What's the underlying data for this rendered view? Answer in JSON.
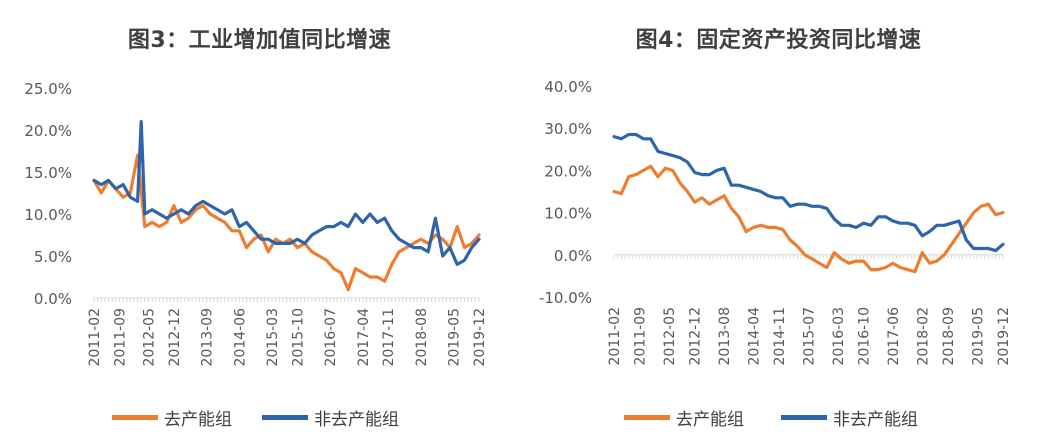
{
  "chart_data": [
    {
      "type": "line",
      "title": "图3：工业增加值同比增速",
      "ylim": [
        0,
        25
      ],
      "y_ticks": [
        "0.0%",
        "5.0%",
        "10.0%",
        "15.0%",
        "20.0%",
        "25.0%"
      ],
      "x_tick_labels": [
        "2011-02",
        "2011-09",
        "2012-05",
        "2012-12",
        "2013-09",
        "2014-06",
        "2015-03",
        "2015-10",
        "2016-07",
        "2017-04",
        "2017-11",
        "2018-08",
        "2019-05",
        "2019-12"
      ],
      "legend_position": "bottom",
      "series": [
        {
          "name": "去产能组",
          "color": "#ED7D31",
          "x": [
            "2011-02",
            "2011-04",
            "2011-06",
            "2011-08",
            "2011-10",
            "2011-12",
            "2012-02",
            "2012-04",
            "2012-06",
            "2012-08",
            "2012-10",
            "2012-12",
            "2013-02",
            "2013-04",
            "2013-06",
            "2013-08",
            "2013-10",
            "2013-12",
            "2014-02",
            "2014-04",
            "2014-06",
            "2014-08",
            "2014-10",
            "2014-12",
            "2015-02",
            "2015-04",
            "2015-06",
            "2015-08",
            "2015-10",
            "2015-12",
            "2016-02",
            "2016-04",
            "2016-06",
            "2016-08",
            "2016-10",
            "2016-12",
            "2017-02",
            "2017-04",
            "2017-06",
            "2017-08",
            "2017-10",
            "2017-12",
            "2018-02",
            "2018-04",
            "2018-06",
            "2018-08",
            "2018-10",
            "2018-12",
            "2019-02",
            "2019-04",
            "2019-06",
            "2019-08",
            "2019-10",
            "2019-12"
          ],
          "values": [
            14.0,
            12.5,
            14.0,
            13.0,
            12.0,
            12.5,
            17.0,
            8.5,
            9.0,
            8.5,
            9.0,
            11.0,
            9.0,
            9.5,
            10.5,
            11.0,
            10.0,
            9.5,
            9.0,
            8.0,
            8.0,
            6.0,
            7.0,
            7.5,
            5.5,
            7.0,
            6.5,
            7.0,
            6.0,
            6.5,
            5.5,
            5.0,
            4.5,
            3.5,
            3.0,
            1.0,
            3.5,
            3.0,
            2.5,
            2.5,
            2.0,
            4.0,
            5.5,
            6.0,
            6.5,
            7.0,
            6.5,
            7.5,
            7.0,
            6.0,
            8.5,
            6.0,
            6.5,
            7.5
          ]
        },
        {
          "name": "非去产能组",
          "color": "#2E65AA",
          "x": [
            "2011-02",
            "2011-04",
            "2011-06",
            "2011-08",
            "2011-10",
            "2011-12",
            "2012-02",
            "2012-03",
            "2012-04",
            "2012-06",
            "2012-08",
            "2012-10",
            "2012-12",
            "2013-02",
            "2013-04",
            "2013-06",
            "2013-08",
            "2013-10",
            "2013-12",
            "2014-02",
            "2014-04",
            "2014-06",
            "2014-08",
            "2014-10",
            "2014-12",
            "2015-02",
            "2015-04",
            "2015-06",
            "2015-08",
            "2015-10",
            "2015-12",
            "2016-02",
            "2016-04",
            "2016-06",
            "2016-08",
            "2016-10",
            "2016-12",
            "2017-02",
            "2017-04",
            "2017-06",
            "2017-08",
            "2017-10",
            "2017-12",
            "2018-02",
            "2018-04",
            "2018-06",
            "2018-08",
            "2018-10",
            "2018-12",
            "2019-02",
            "2019-04",
            "2019-06",
            "2019-08",
            "2019-10",
            "2019-12"
          ],
          "values": [
            14.0,
            13.5,
            14.0,
            13.0,
            13.5,
            12.0,
            11.5,
            21.0,
            10.0,
            10.5,
            10.0,
            9.5,
            10.0,
            10.5,
            10.0,
            11.0,
            11.5,
            11.0,
            10.5,
            10.0,
            10.5,
            8.5,
            9.0,
            8.0,
            7.0,
            7.0,
            6.5,
            6.5,
            6.5,
            7.0,
            6.5,
            7.5,
            8.0,
            8.5,
            8.5,
            9.0,
            8.5,
            10.0,
            9.0,
            10.0,
            9.0,
            9.5,
            8.0,
            7.0,
            6.5,
            6.0,
            6.0,
            5.5,
            9.5,
            5.0,
            6.0,
            4.0,
            4.5,
            6.0,
            7.0
          ]
        }
      ]
    },
    {
      "type": "line",
      "title": "图4：固定资产投资同比增速",
      "ylim": [
        -10,
        40
      ],
      "y_ticks": [
        "-10.0%",
        "0.0%",
        "10.0%",
        "20.0%",
        "30.0%",
        "40.0%"
      ],
      "x_tick_labels": [
        "2011-02",
        "2011-09",
        "2012-05",
        "2012-12",
        "2013-08",
        "2014-04",
        "2014-11",
        "2015-07",
        "2016-03",
        "2016-10",
        "2017-06",
        "2018-02",
        "2018-09",
        "2019-05",
        "2019-12"
      ],
      "legend_position": "bottom",
      "series": [
        {
          "name": "去产能组",
          "color": "#ED7D31",
          "x": [
            "2011-02",
            "2011-04",
            "2011-06",
            "2011-08",
            "2011-10",
            "2011-12",
            "2012-02",
            "2012-04",
            "2012-06",
            "2012-08",
            "2012-10",
            "2012-12",
            "2013-02",
            "2013-04",
            "2013-06",
            "2013-08",
            "2013-10",
            "2013-12",
            "2014-02",
            "2014-04",
            "2014-06",
            "2014-08",
            "2014-10",
            "2014-12",
            "2015-02",
            "2015-04",
            "2015-06",
            "2015-08",
            "2015-10",
            "2015-12",
            "2016-02",
            "2016-04",
            "2016-06",
            "2016-08",
            "2016-10",
            "2016-12",
            "2017-02",
            "2017-04",
            "2017-06",
            "2017-08",
            "2017-10",
            "2017-12",
            "2018-02",
            "2018-04",
            "2018-06",
            "2018-08",
            "2018-10",
            "2018-12",
            "2019-02",
            "2019-04",
            "2019-06",
            "2019-08",
            "2019-10",
            "2019-12"
          ],
          "values": [
            15.0,
            14.5,
            18.5,
            19.0,
            20.0,
            21.0,
            18.5,
            20.5,
            20.0,
            17.0,
            15.0,
            12.5,
            13.5,
            12.0,
            13.0,
            14.0,
            11.0,
            9.0,
            5.5,
            6.5,
            7.0,
            6.5,
            6.5,
            6.0,
            3.5,
            2.0,
            0.0,
            -1.0,
            -2.0,
            -3.0,
            0.5,
            -1.0,
            -2.0,
            -1.5,
            -1.5,
            -3.5,
            -3.5,
            -3.0,
            -2.0,
            -3.0,
            -3.5,
            -4.0,
            0.5,
            -2.0,
            -1.5,
            0.0,
            2.5,
            5.0,
            7.5,
            10.0,
            11.5,
            12.0,
            9.5,
            10.0
          ]
        },
        {
          "name": "非去产能组",
          "color": "#2E65AA",
          "x": [
            "2011-02",
            "2011-04",
            "2011-06",
            "2011-08",
            "2011-10",
            "2011-12",
            "2012-02",
            "2012-04",
            "2012-06",
            "2012-08",
            "2012-10",
            "2012-12",
            "2013-02",
            "2013-04",
            "2013-06",
            "2013-08",
            "2013-10",
            "2013-12",
            "2014-02",
            "2014-04",
            "2014-06",
            "2014-08",
            "2014-10",
            "2014-12",
            "2015-02",
            "2015-04",
            "2015-06",
            "2015-08",
            "2015-10",
            "2015-12",
            "2016-02",
            "2016-04",
            "2016-06",
            "2016-08",
            "2016-10",
            "2016-12",
            "2017-02",
            "2017-04",
            "2017-06",
            "2017-08",
            "2017-10",
            "2017-12",
            "2018-02",
            "2018-04",
            "2018-06",
            "2018-08",
            "2018-10",
            "2018-12",
            "2019-02",
            "2019-04",
            "2019-06",
            "2019-08",
            "2019-10",
            "2019-12"
          ],
          "values": [
            28.0,
            27.5,
            28.5,
            28.5,
            27.5,
            27.5,
            24.5,
            24.0,
            23.5,
            23.0,
            22.0,
            19.5,
            19.0,
            19.0,
            20.0,
            20.5,
            16.5,
            16.5,
            16.0,
            15.5,
            15.0,
            14.0,
            13.5,
            13.5,
            11.5,
            12.0,
            12.0,
            11.5,
            11.5,
            11.0,
            8.5,
            7.0,
            7.0,
            6.5,
            7.5,
            7.0,
            9.0,
            9.0,
            8.0,
            7.5,
            7.5,
            7.0,
            4.5,
            5.5,
            7.0,
            7.0,
            7.5,
            8.0,
            3.5,
            1.5,
            1.5,
            1.5,
            1.0,
            2.5
          ]
        }
      ]
    }
  ]
}
